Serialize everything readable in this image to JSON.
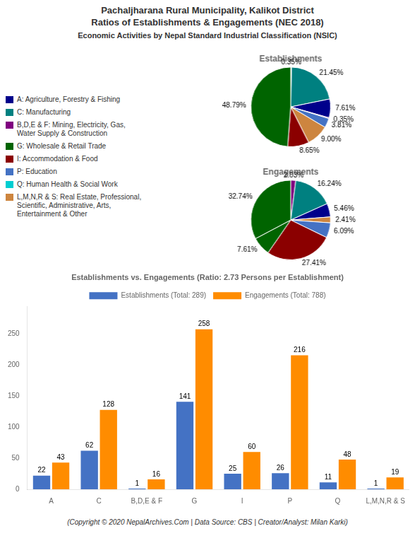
{
  "title": "Pachaljharana Rural Municipality, Kalikot District\nRatios of Establishments & Engagements (NEC 2018)",
  "subtitle": "Economic Activities by Nepal Standard Industrial Classification (NSIC)",
  "series": [
    {
      "name": "A: Agriculture, Forestry & Fishing",
      "color": "#00008B"
    },
    {
      "name": "C: Manufacturing",
      "color": "#008080"
    },
    {
      "name": "B,D,E & F: Mining, Electricity, Gas,\nWater Supply & Construction",
      "color": "#800080"
    },
    {
      "name": "G: Wholesale & Retail Trade",
      "color": "#006400"
    },
    {
      "name": "I: Accommodation & Food",
      "color": "#8B0000"
    },
    {
      "name": "P: Education",
      "color": "#4472C4"
    },
    {
      "name": "Q: Human Health & Social Work",
      "color": "#00CED1"
    },
    {
      "name": "L,M,N,R & S: Real Estate, Professional,\nScientific, Administrative, Arts,\nEntertainment & Other",
      "color": "#CD853F"
    }
  ],
  "annotations": [
    "(Copyright © 2020 NepalArchives.Com | Data Source: CBS | Creator/Analyst: Milan Karki)"
  ],
  "chart_data": [
    {
      "type": "pie",
      "title": "Establishments",
      "values": [
        0.35,
        21.45,
        7.61,
        0.35,
        3.81,
        9.0,
        8.65,
        48.79
      ],
      "value_labels": [
        "0.35%",
        "21.45%",
        "7.61%",
        "0.35%",
        "3.81%",
        "9.00%",
        "8.65%",
        "48.79%"
      ],
      "colors": [
        "#CD853F",
        "#008080",
        "#00008B",
        "#800080",
        "#4472C4",
        "#CD853F",
        "#8B0000",
        "#006400"
      ],
      "data_labels": true
    },
    {
      "type": "pie",
      "title": "Engagements",
      "values": [
        2.03,
        16.24,
        5.46,
        2.41,
        6.09,
        27.41,
        7.61,
        32.74
      ],
      "value_labels": [
        "2.03%",
        "16.24%",
        "5.46%",
        "2.41%",
        "6.09%",
        "27.41%",
        "7.61%",
        "32.74%"
      ],
      "colors": [
        "#800080",
        "#008080",
        "#00008B",
        "#CD853F",
        "#4472C4",
        "#8B0000",
        "#006400",
        "#006400"
      ],
      "data_labels": true
    },
    {
      "type": "bar",
      "title": "Establishments vs. Engagements (Ratio: 2.73 Persons per Establishment)",
      "categories": [
        "A",
        "C",
        "B,D,E & F",
        "G",
        "I",
        "P",
        "Q",
        "L,M,N,R & S"
      ],
      "series": [
        {
          "name": "Establishments (Total: 289)",
          "color": "#4472C4",
          "values": [
            22,
            62,
            1,
            141,
            25,
            26,
            11,
            1
          ]
        },
        {
          "name": "Engagements (Total: 788)",
          "color": "#FF8C00",
          "values": [
            43,
            128,
            16,
            258,
            60,
            216,
            48,
            19
          ]
        }
      ],
      "ylim": [
        0,
        295
      ],
      "yticks": [
        0,
        50,
        100,
        150,
        200,
        250
      ],
      "grid": false,
      "legend": "top",
      "data_labels": true
    }
  ]
}
